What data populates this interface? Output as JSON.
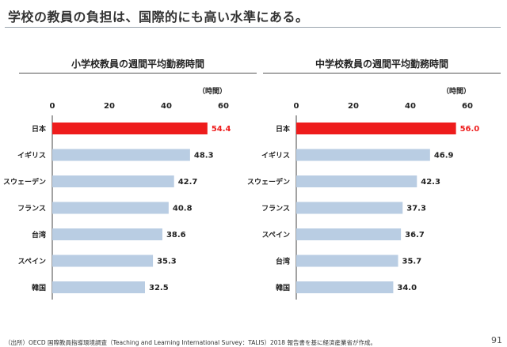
{
  "slide": {
    "title": "学校の教員の負担は、国際的にも高い水準にある。",
    "footnote": "（出所）OECD 国際教員指導環境調査（Teaching and Learning International Survey：TALIS）2018 報告書を基に経済産業省が作成。",
    "page_number": "91"
  },
  "colors": {
    "highlight": "#ee1c1c",
    "bar": "#b9cde3",
    "axis": "#444444"
  },
  "chart_data": [
    {
      "type": "bar",
      "orientation": "horizontal",
      "title": "小学校教員の週間平均勤務時間",
      "unit_label": "（時間）",
      "xlim": [
        0,
        60
      ],
      "ticks": [
        "0",
        "20",
        "40",
        "60"
      ],
      "categories": [
        "日本",
        "イギリス",
        "スウェーデン",
        "フランス",
        "台湾",
        "スペイン",
        "韓国"
      ],
      "values": [
        54.4,
        48.3,
        42.7,
        40.8,
        38.6,
        35.3,
        32.5
      ],
      "value_labels": [
        "54.4",
        "48.3",
        "42.7",
        "40.8",
        "38.6",
        "35.3",
        "32.5"
      ],
      "highlight_index": 0
    },
    {
      "type": "bar",
      "orientation": "horizontal",
      "title": "中学校教員の週間平均勤務時間",
      "unit_label": "（時間）",
      "xlim": [
        0,
        60
      ],
      "ticks": [
        "0",
        "20",
        "40",
        "60"
      ],
      "categories": [
        "日本",
        "イギリス",
        "スウェーデン",
        "フランス",
        "スペイン",
        "台湾",
        "韓国"
      ],
      "values": [
        56.0,
        46.9,
        42.3,
        37.3,
        36.7,
        35.7,
        34.0
      ],
      "value_labels": [
        "56.0",
        "46.9",
        "42.3",
        "37.3",
        "36.7",
        "35.7",
        "34.0"
      ],
      "highlight_index": 0
    }
  ]
}
